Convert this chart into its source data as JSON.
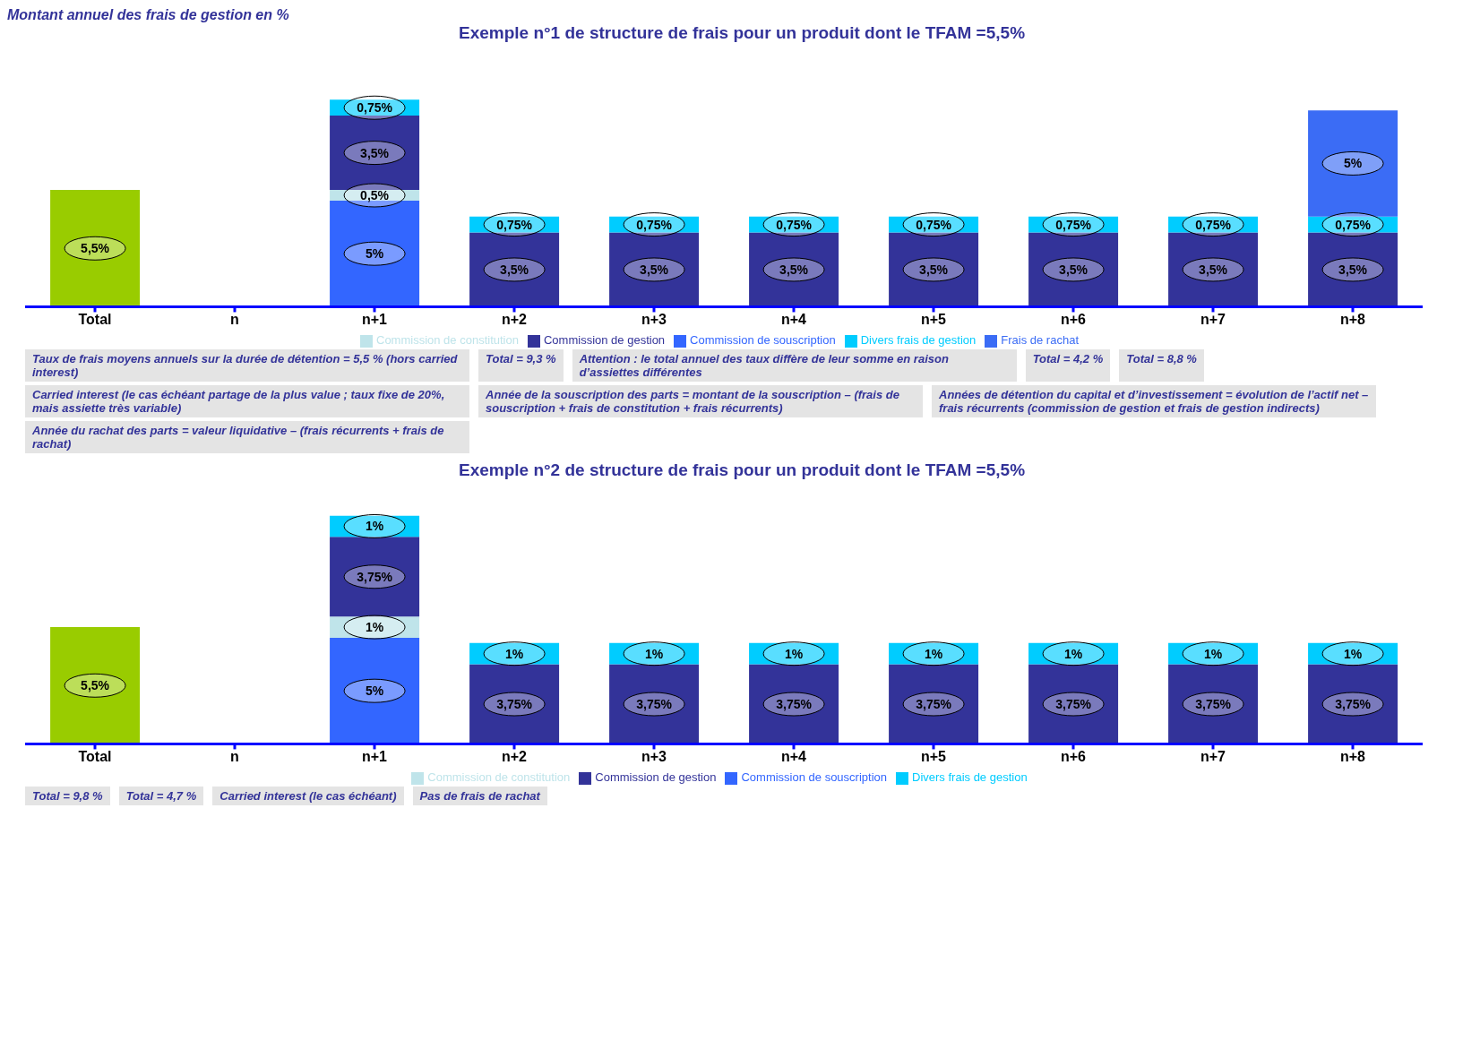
{
  "chart_data": [
    {
      "type": "bar",
      "title": "Exemple n°1 de structure de frais pour un produit dont le TFAM =5,5%",
      "ylabel": "Montant annuel des frais de gestion en %",
      "stacked": true,
      "legend": "bottom",
      "categories": [
        "Total",
        "n",
        "n+1",
        "n+2",
        "n+3",
        "n+4",
        "n+5",
        "n+6",
        "n+7",
        "n+8"
      ],
      "series": [
        {
          "color": "#99cc00",
          "values": [
            5.5,
            null,
            null,
            null,
            null,
            null,
            null,
            null,
            null,
            null
          ],
          "value_labels": [
            "5,5%",
            null,
            null,
            null,
            null,
            null,
            null,
            null,
            null,
            null
          ]
        },
        {
          "name": "Commission de souscription",
          "color": "#3366ff",
          "values": [
            null,
            null,
            5,
            null,
            null,
            null,
            null,
            null,
            null,
            null
          ],
          "value_labels": [
            null,
            null,
            "5%",
            null,
            null,
            null,
            null,
            null,
            null,
            null
          ]
        },
        {
          "name": "Commission de constitution",
          "color": "#bfe4ea",
          "values": [
            null,
            null,
            0.5,
            null,
            null,
            null,
            null,
            null,
            null,
            null
          ],
          "value_labels": [
            null,
            null,
            "0,5%",
            null,
            null,
            null,
            null,
            null,
            null,
            null
          ]
        },
        {
          "name": "Commission de gestion",
          "color": "#333399",
          "values": [
            null,
            null,
            3.5,
            3.5,
            3.5,
            3.5,
            3.5,
            3.5,
            3.5,
            3.5
          ],
          "value_labels": [
            null,
            null,
            "3,5%",
            "3,5%",
            "3,5%",
            "3,5%",
            "3,5%",
            "3,5%",
            "3,5%",
            "3,5%"
          ]
        },
        {
          "name": "Divers frais de gestion",
          "color": "#00ccff",
          "values": [
            null,
            null,
            0.75,
            0.75,
            0.75,
            0.75,
            0.75,
            0.75,
            0.75,
            0.75
          ],
          "value_labels": [
            null,
            null,
            "0,75%",
            "0,75%",
            "0,75%",
            "0,75%",
            "0,75%",
            "0,75%",
            "0,75%",
            "0,75%"
          ]
        },
        {
          "name": "Frais de rachat",
          "color": "#3b6cf5",
          "values": [
            null,
            null,
            null,
            null,
            null,
            null,
            null,
            null,
            null,
            5
          ],
          "value_labels": [
            null,
            null,
            null,
            null,
            null,
            null,
            null,
            null,
            null,
            "5%"
          ]
        }
      ],
      "annotations": [
        "Taux de frais moyens annuels sur la durée de détention = 5,5 % (hors carried interest)",
        "Total = 9,3 %",
        "Attention : le total annuel des taux diffère de leur somme en raison d’assiettes différentes",
        "Total = 4,2 %",
        "Total = 8,8 %",
        "Carried interest (le cas échéant partage de la plus value ; taux fixe de 20%, mais assiette très variable)",
        "Année de la souscription des parts = montant de la souscription – (frais de souscription + frais de constitution + frais récurrents)",
        "Années de détention du capital et d’investissement = évolution de l’actif net – frais récurrents (commission de gestion et frais de gestion indirects)",
        "Année du rachat des parts = valeur liquidative – (frais récurrents + frais de rachat)"
      ]
    },
    {
      "type": "bar",
      "title": "Exemple n°2 de structure de frais pour un produit dont le TFAM =5,5%",
      "stacked": true,
      "legend": "bottom",
      "categories": [
        "Total",
        "n",
        "n+1",
        "n+2",
        "n+3",
        "n+4",
        "n+5",
        "n+6",
        "n+7",
        "n+8"
      ],
      "series": [
        {
          "color": "#99cc00",
          "values": [
            5.5,
            null,
            null,
            null,
            null,
            null,
            null,
            null,
            null,
            null
          ],
          "value_labels": [
            "5,5%",
            null,
            null,
            null,
            null,
            null,
            null,
            null,
            null,
            null
          ]
        },
        {
          "name": "Commission de souscription",
          "color": "#3366ff",
          "values": [
            null,
            null,
            5,
            null,
            null,
            null,
            null,
            null,
            null,
            null
          ],
          "value_labels": [
            null,
            null,
            "5%",
            null,
            null,
            null,
            null,
            null,
            null,
            null
          ]
        },
        {
          "name": "Commission de constitution",
          "color": "#bfe4ea",
          "values": [
            null,
            null,
            1,
            null,
            null,
            null,
            null,
            null,
            null,
            null
          ],
          "value_labels": [
            null,
            null,
            "1%",
            null,
            null,
            null,
            null,
            null,
            null,
            null
          ]
        },
        {
          "name": "Commission de gestion",
          "color": "#333399",
          "values": [
            null,
            null,
            3.75,
            3.75,
            3.75,
            3.75,
            3.75,
            3.75,
            3.75,
            3.75
          ],
          "value_labels": [
            null,
            null,
            "3,75%",
            "3,75%",
            "3,75%",
            "3,75%",
            "3,75%",
            "3,75%",
            "3,75%",
            "3,75%"
          ]
        },
        {
          "name": "Divers frais de gestion",
          "color": "#00ccff",
          "values": [
            null,
            null,
            1,
            1,
            1,
            1,
            1,
            1,
            1,
            1
          ],
          "value_labels": [
            null,
            null,
            "1%",
            "1%",
            "1%",
            "1%",
            "1%",
            "1%",
            "1%",
            "1%"
          ]
        }
      ],
      "annotations": [
        "Total = 9,8 %",
        "Total = 4,7 %",
        "Carried interest (le cas échéant)",
        "Pas de frais de rachat"
      ]
    }
  ]
}
